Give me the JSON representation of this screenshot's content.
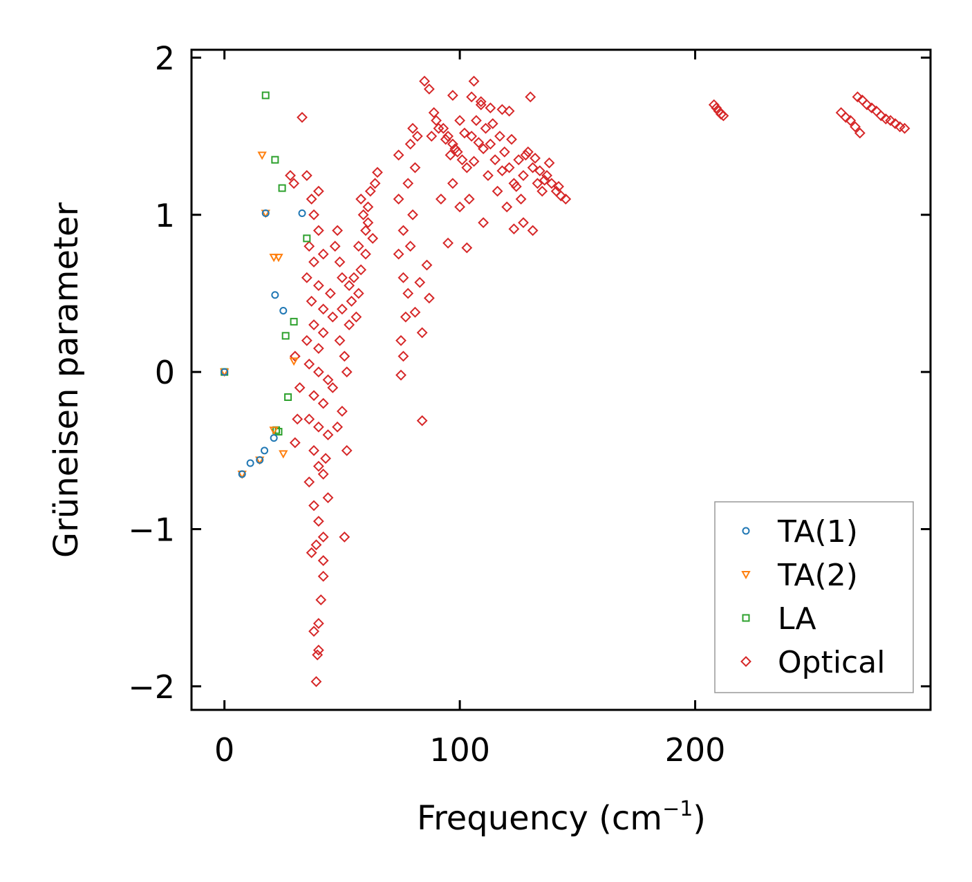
{
  "chart_data": {
    "type": "scatter",
    "title": "",
    "xlabel": "Frequency (cm",
    "xlabel_sup": "−1",
    "xlabel_end": ")",
    "ylabel": "Grüneisen parameter",
    "xlim": [
      -14,
      300
    ],
    "ylim": [
      -2.15,
      2.05
    ],
    "xticks": [
      0,
      100,
      200
    ],
    "xtick_labels": [
      "0",
      "100",
      "200"
    ],
    "yticks": [
      -2,
      -1,
      0,
      1,
      2
    ],
    "ytick_labels": [
      "−2",
      "−1",
      "0",
      "1",
      "2"
    ],
    "legend_position": "lower-right",
    "series": [
      {
        "name": "TA(1)",
        "marker": "circle",
        "color": "#1f77b4",
        "points": [
          [
            0,
            0
          ],
          [
            7.5,
            -0.65
          ],
          [
            11,
            -0.58
          ],
          [
            15,
            -0.56
          ],
          [
            17,
            -0.5
          ],
          [
            21,
            -0.42
          ],
          [
            17.5,
            1.01
          ],
          [
            21.5,
            0.49
          ],
          [
            25,
            0.39
          ],
          [
            33,
            1.01
          ]
        ]
      },
      {
        "name": "TA(2)",
        "marker": "triangle-down",
        "color": "#ff7f0e",
        "points": [
          [
            0,
            0
          ],
          [
            7.5,
            -0.65
          ],
          [
            15,
            -0.56
          ],
          [
            16,
            1.38
          ],
          [
            17.5,
            1.01
          ],
          [
            21,
            0.73
          ],
          [
            23,
            0.73
          ],
          [
            21,
            -0.37
          ],
          [
            25,
            -0.52
          ],
          [
            29.5,
            0.07
          ]
        ]
      },
      {
        "name": "LA",
        "marker": "square",
        "color": "#2ca02c",
        "points": [
          [
            0,
            0
          ],
          [
            17.5,
            1.76
          ],
          [
            21.5,
            1.35
          ],
          [
            24.5,
            1.17
          ],
          [
            35,
            0.85
          ],
          [
            29.5,
            0.32
          ],
          [
            26,
            0.23
          ],
          [
            27,
            -0.16
          ],
          [
            22,
            -0.37
          ],
          [
            23,
            -0.38
          ]
        ]
      },
      {
        "name": "Optical",
        "marker": "diamond",
        "color": "#d62728",
        "points": [
          [
            33,
            1.62
          ],
          [
            28,
            1.25
          ],
          [
            29.5,
            1.2
          ],
          [
            35,
            1.25
          ],
          [
            37,
            1.1
          ],
          [
            40,
            1.15
          ],
          [
            38,
            1.0
          ],
          [
            40,
            0.9
          ],
          [
            36,
            0.8
          ],
          [
            42,
            0.75
          ],
          [
            38,
            0.7
          ],
          [
            35,
            0.6
          ],
          [
            40,
            0.55
          ],
          [
            45,
            0.5
          ],
          [
            37,
            0.45
          ],
          [
            42,
            0.4
          ],
          [
            46,
            0.35
          ],
          [
            38,
            0.3
          ],
          [
            42,
            0.25
          ],
          [
            35,
            0.2
          ],
          [
            40,
            0.15
          ],
          [
            30,
            0.1
          ],
          [
            36,
            0.05
          ],
          [
            40,
            0.0
          ],
          [
            44,
            -0.05
          ],
          [
            32,
            -0.1
          ],
          [
            38,
            -0.15
          ],
          [
            42,
            -0.2
          ],
          [
            31,
            -0.3
          ],
          [
            36,
            -0.3
          ],
          [
            40,
            -0.35
          ],
          [
            44,
            -0.4
          ],
          [
            30,
            -0.45
          ],
          [
            38,
            -0.5
          ],
          [
            43,
            -0.55
          ],
          [
            40,
            -0.6
          ],
          [
            42,
            -0.65
          ],
          [
            36,
            -0.7
          ],
          [
            44,
            -0.8
          ],
          [
            38,
            -0.85
          ],
          [
            40,
            -0.95
          ],
          [
            42,
            -1.05
          ],
          [
            39,
            -1.1
          ],
          [
            37,
            -1.15
          ],
          [
            42,
            -1.2
          ],
          [
            42,
            -1.3
          ],
          [
            41,
            -1.45
          ],
          [
            40,
            -1.6
          ],
          [
            38,
            -1.65
          ],
          [
            39.5,
            -1.8
          ],
          [
            40,
            -1.77
          ],
          [
            39,
            -1.97
          ],
          [
            51,
            -1.05
          ],
          [
            48,
            0.9
          ],
          [
            50,
            0.6
          ],
          [
            47,
            0.8
          ],
          [
            50,
            0.4
          ],
          [
            53,
            0.3
          ],
          [
            49,
            0.2
          ],
          [
            51,
            0.1
          ],
          [
            52,
            0.0
          ],
          [
            46,
            -0.1
          ],
          [
            50,
            -0.25
          ],
          [
            48,
            -0.35
          ],
          [
            52,
            -0.5
          ],
          [
            49,
            0.7
          ],
          [
            53,
            0.55
          ],
          [
            55,
            0.6
          ],
          [
            57,
            0.5
          ],
          [
            54,
            0.45
          ],
          [
            56,
            0.35
          ],
          [
            58,
            0.65
          ],
          [
            60,
            0.9
          ],
          [
            57,
            0.8
          ],
          [
            59,
            1.0
          ],
          [
            61,
            1.05
          ],
          [
            62,
            1.15
          ],
          [
            64,
            1.2
          ],
          [
            60,
            0.75
          ],
          [
            63,
            0.85
          ],
          [
            58,
            1.1
          ],
          [
            61,
            0.95
          ],
          [
            65,
            1.27
          ],
          [
            75,
            -0.02
          ],
          [
            76,
            0.1
          ],
          [
            75,
            0.2
          ],
          [
            77,
            0.35
          ],
          [
            78,
            0.5
          ],
          [
            76,
            0.6
          ],
          [
            74,
            0.75
          ],
          [
            79,
            0.8
          ],
          [
            76,
            0.9
          ],
          [
            80,
            1.0
          ],
          [
            74,
            1.1
          ],
          [
            78,
            1.2
          ],
          [
            81,
            1.3
          ],
          [
            74,
            1.38
          ],
          [
            79,
            1.45
          ],
          [
            82,
            1.5
          ],
          [
            80,
            1.55
          ],
          [
            81,
            0.38
          ],
          [
            84,
            0.25
          ],
          [
            83,
            0.57
          ],
          [
            84,
            -0.31
          ],
          [
            87,
            0.47
          ],
          [
            86,
            0.68
          ],
          [
            85,
            1.85
          ],
          [
            87,
            1.8
          ],
          [
            90,
            1.6
          ],
          [
            93,
            1.55
          ],
          [
            95,
            1.5
          ],
          [
            97,
            1.45
          ],
          [
            99,
            1.4
          ],
          [
            101,
            1.35
          ],
          [
            103,
            1.3
          ],
          [
            105,
            1.5
          ],
          [
            107,
            1.6
          ],
          [
            109,
            1.7
          ],
          [
            111,
            1.55
          ],
          [
            113,
            1.45
          ],
          [
            115,
            1.35
          ],
          [
            117,
            1.5
          ],
          [
            119,
            1.4
          ],
          [
            121,
            1.3
          ],
          [
            123,
            1.2
          ],
          [
            125,
            1.35
          ],
          [
            127,
            1.25
          ],
          [
            129,
            1.4
          ],
          [
            131,
            1.3
          ],
          [
            133,
            1.2
          ],
          [
            135,
            1.15
          ],
          [
            137,
            1.25
          ],
          [
            139,
            1.2
          ],
          [
            141,
            1.15
          ],
          [
            143,
            1.12
          ],
          [
            145,
            1.1
          ],
          [
            97,
            1.76
          ],
          [
            106,
            1.85
          ],
          [
            105,
            1.75
          ],
          [
            109,
            1.72
          ],
          [
            113,
            1.68
          ],
          [
            118,
            1.67
          ],
          [
            121,
            1.66
          ],
          [
            130,
            1.75
          ],
          [
            95,
            0.82
          ],
          [
            103,
            0.79
          ],
          [
            110,
            0.95
          ],
          [
            123,
            0.91
          ],
          [
            127,
            0.95
          ],
          [
            131,
            0.9
          ],
          [
            92,
            1.1
          ],
          [
            97,
            1.2
          ],
          [
            100,
            1.05
          ],
          [
            104,
            1.1
          ],
          [
            112,
            1.25
          ],
          [
            116,
            1.15
          ],
          [
            120,
            1.05
          ],
          [
            126,
            1.1
          ],
          [
            134,
            1.28
          ],
          [
            138,
            1.33
          ],
          [
            142,
            1.18
          ],
          [
            89,
            1.65
          ],
          [
            91,
            1.55
          ],
          [
            94,
            1.48
          ],
          [
            98,
            1.42
          ],
          [
            102,
            1.52
          ],
          [
            108,
            1.46
          ],
          [
            114,
            1.58
          ],
          [
            122,
            1.48
          ],
          [
            128,
            1.38
          ],
          [
            132,
            1.36
          ],
          [
            136,
            1.22
          ],
          [
            88,
            1.5
          ],
          [
            96,
            1.38
          ],
          [
            100,
            1.6
          ],
          [
            106,
            1.34
          ],
          [
            110,
            1.42
          ],
          [
            118,
            1.28
          ],
          [
            124,
            1.18
          ],
          [
            208,
            1.7
          ],
          [
            209,
            1.68
          ],
          [
            210,
            1.66
          ],
          [
            211,
            1.64
          ],
          [
            212,
            1.63
          ],
          [
            262,
            1.65
          ],
          [
            264,
            1.62
          ],
          [
            266,
            1.6
          ],
          [
            268,
            1.56
          ],
          [
            270,
            1.52
          ],
          [
            269,
            1.75
          ],
          [
            271,
            1.73
          ],
          [
            273,
            1.7
          ],
          [
            275,
            1.68
          ],
          [
            277,
            1.66
          ],
          [
            279,
            1.63
          ],
          [
            281,
            1.61
          ],
          [
            283,
            1.6
          ],
          [
            285,
            1.58
          ],
          [
            287,
            1.56
          ],
          [
            289,
            1.55
          ]
        ]
      }
    ]
  }
}
